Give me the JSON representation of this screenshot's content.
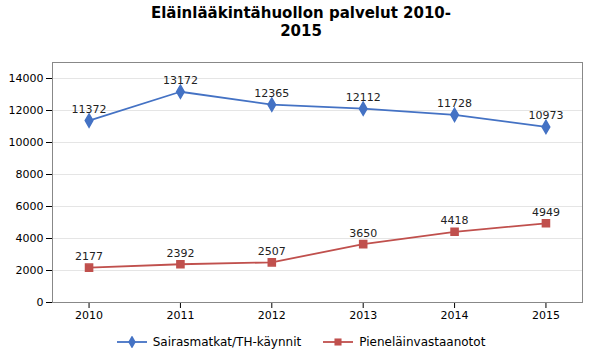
{
  "chart_data": {
    "type": "line",
    "title": "Eläinlääkintähuollon palvelut 2010-\n2015",
    "x": [
      2010,
      2011,
      2012,
      2013,
      2014,
      2015
    ],
    "series": [
      {
        "name": "Sairasmatkat/TH-käynnit",
        "color": "#4472C4",
        "marker": "diamond",
        "values": [
          11372,
          13172,
          12365,
          12112,
          11728,
          10973
        ]
      },
      {
        "name": "Pieneläinvastaanotot",
        "color": "#C0504D",
        "marker": "square",
        "values": [
          2177,
          2392,
          2507,
          3650,
          4418,
          4949
        ]
      }
    ],
    "xlim": [
      2009.6,
      2015.4
    ],
    "xticks": [
      2010,
      2011,
      2012,
      2013,
      2014,
      2015
    ],
    "ylim": [
      0,
      15000
    ],
    "yticks": [
      0,
      2000,
      4000,
      6000,
      8000,
      10000,
      12000,
      14000
    ],
    "grid": true,
    "legend": "bottom",
    "data_labels": true
  }
}
